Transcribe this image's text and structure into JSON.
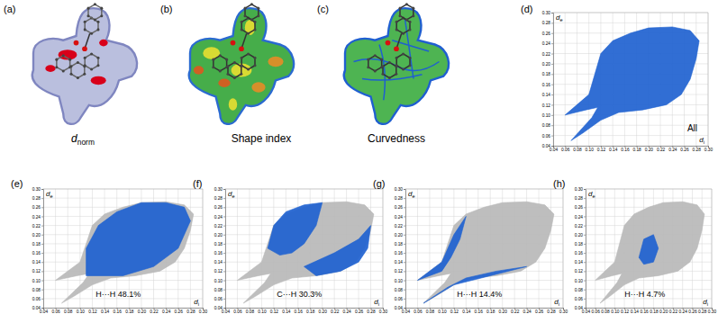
{
  "panels": [
    {
      "label": "(a)",
      "caption": "dnorm"
    },
    {
      "label": "(b)",
      "caption": "Shape index"
    },
    {
      "label": "(c)",
      "caption": "Curvedness"
    }
  ],
  "chart_data": [
    {
      "type": "area",
      "title": "(d)",
      "annotation": "All",
      "xlabel": "di",
      "ylabel": "de",
      "xlim": [
        0.04,
        0.3
      ],
      "ylim": [
        0.04,
        0.3
      ],
      "xticks": [
        0.04,
        0.06,
        0.08,
        {
          "value": 0.1,
          "label": "0.10"
        },
        0.12,
        0.14,
        0.16,
        0.18,
        {
          "value": 0.2,
          "label": "0.20"
        },
        0.22,
        0.24,
        0.26,
        0.28,
        {
          "value": 0.3,
          "label": "0.30"
        }
      ],
      "yticks": [
        0.04,
        0.06,
        0.08,
        {
          "value": 0.1,
          "label": "0.10"
        },
        0.12,
        0.14,
        0.16,
        0.18,
        {
          "value": 0.2,
          "label": "0.20"
        },
        0.22,
        0.24,
        0.26,
        0.28,
        {
          "value": 0.3,
          "label": "0.30"
        }
      ],
      "grid": true,
      "series": [
        {
          "color": "#1f62d0",
          "x": [
            0.06,
            0.1,
            0.11,
            0.12,
            0.14,
            0.17,
            0.2,
            0.24,
            0.27,
            0.285,
            0.28,
            0.27,
            0.255,
            0.23,
            0.19,
            0.15,
            0.12,
            0.09,
            0.07,
            0.105,
            0.115,
            0.095
          ],
          "values": [
            0.1,
            0.14,
            0.18,
            0.22,
            0.245,
            0.26,
            0.27,
            0.272,
            0.265,
            0.245,
            0.21,
            0.17,
            0.14,
            0.12,
            0.11,
            0.105,
            0.09,
            0.065,
            0.05,
            0.095,
            0.115,
            0.11
          ]
        }
      ]
    },
    {
      "type": "area",
      "title": "(e)",
      "annotation": "H···H 48.1%",
      "xlabel": "di",
      "ylabel": "de",
      "xlim": [
        0.04,
        0.3
      ],
      "ylim": [
        0.04,
        0.3
      ],
      "xticks": [
        0.04,
        0.06,
        0.08,
        {
          "value": 0.1,
          "label": "0.10"
        },
        0.12,
        0.14,
        0.16,
        0.18,
        {
          "value": 0.2,
          "label": "0.20"
        },
        0.22,
        0.24,
        0.26,
        0.28,
        {
          "value": 0.3,
          "label": "0.30"
        }
      ],
      "yticks": [
        0.04,
        0.06,
        0.08,
        {
          "value": 0.1,
          "label": "0.10"
        },
        0.12,
        0.14,
        0.16,
        0.18,
        {
          "value": 0.2,
          "label": "0.20"
        },
        0.22,
        0.24,
        0.26,
        0.28,
        {
          "value": 0.3,
          "label": "0.30"
        }
      ],
      "grid": true,
      "series": [
        {
          "color": "#b8b8b8",
          "x": [
            0.06,
            0.1,
            0.11,
            0.12,
            0.14,
            0.17,
            0.2,
            0.24,
            0.27,
            0.285,
            0.28,
            0.27,
            0.255,
            0.23,
            0.19,
            0.15,
            0.12,
            0.09,
            0.07,
            0.105,
            0.115,
            0.095
          ],
          "values": [
            0.1,
            0.14,
            0.18,
            0.22,
            0.245,
            0.26,
            0.27,
            0.272,
            0.265,
            0.245,
            0.21,
            0.17,
            0.14,
            0.12,
            0.11,
            0.105,
            0.09,
            0.065,
            0.05,
            0.095,
            0.115,
            0.11
          ]
        },
        {
          "color": "#1f62d0",
          "x": [
            0.11,
            0.11,
            0.13,
            0.16,
            0.2,
            0.24,
            0.27,
            0.28,
            0.26,
            0.22,
            0.17
          ],
          "values": [
            0.11,
            0.17,
            0.22,
            0.25,
            0.27,
            0.27,
            0.26,
            0.23,
            0.17,
            0.13,
            0.11
          ]
        }
      ]
    },
    {
      "type": "area",
      "title": "(f)",
      "annotation": "C···H 30.3%",
      "xlabel": "di",
      "ylabel": "de",
      "xlim": [
        0.04,
        0.3
      ],
      "ylim": [
        0.04,
        0.3
      ],
      "xticks": [
        0.04,
        0.06,
        0.08,
        {
          "value": 0.1,
          "label": "0.10"
        },
        0.12,
        0.14,
        0.16,
        0.18,
        {
          "value": 0.2,
          "label": "0.20"
        },
        0.22,
        0.24,
        0.26,
        0.28,
        {
          "value": 0.3,
          "label": "0.30"
        }
      ],
      "yticks": [
        0.04,
        0.06,
        0.08,
        {
          "value": 0.1,
          "label": "0.10"
        },
        0.12,
        0.14,
        0.16,
        0.18,
        {
          "value": 0.2,
          "label": "0.20"
        },
        0.22,
        0.24,
        0.26,
        0.28,
        {
          "value": 0.3,
          "label": "0.30"
        }
      ],
      "grid": true,
      "series": [
        {
          "color": "#b8b8b8",
          "x": [
            0.06,
            0.1,
            0.11,
            0.12,
            0.14,
            0.17,
            0.2,
            0.24,
            0.27,
            0.285,
            0.28,
            0.27,
            0.255,
            0.23,
            0.19,
            0.15,
            0.12,
            0.09,
            0.07,
            0.105,
            0.115,
            0.095
          ],
          "values": [
            0.1,
            0.14,
            0.18,
            0.22,
            0.245,
            0.26,
            0.27,
            0.272,
            0.265,
            0.245,
            0.21,
            0.17,
            0.14,
            0.12,
            0.11,
            0.105,
            0.09,
            0.065,
            0.05,
            0.095,
            0.115,
            0.11
          ]
        },
        {
          "color": "#1f62d0",
          "x": [
            0.11,
            0.12,
            0.14,
            0.17,
            0.2,
            0.19,
            0.17,
            0.15,
            0.13,
            null,
            0.17,
            0.22,
            0.26,
            0.28,
            0.275,
            0.26,
            0.23,
            0.19
          ],
          "values": [
            0.17,
            0.22,
            0.25,
            0.265,
            0.27,
            0.22,
            0.18,
            0.16,
            0.155,
            null,
            0.13,
            0.16,
            0.19,
            0.22,
            0.17,
            0.14,
            0.12,
            0.11
          ]
        }
      ]
    },
    {
      "type": "area",
      "title": "(g)",
      "annotation": "H···H 14.4%",
      "xlabel": "di",
      "ylabel": "de",
      "xlim": [
        0.04,
        0.3
      ],
      "ylim": [
        0.04,
        0.3
      ],
      "xticks": [
        0.04,
        0.06,
        0.08,
        {
          "value": 0.1,
          "label": "0.10"
        },
        0.12,
        0.14,
        0.16,
        0.18,
        {
          "value": 0.2,
          "label": "0.20"
        },
        0.22,
        0.24,
        0.26,
        0.28,
        {
          "value": 0.3,
          "label": "0.30"
        }
      ],
      "yticks": [
        0.04,
        0.06,
        0.08,
        {
          "value": 0.1,
          "label": "0.10"
        },
        0.12,
        0.14,
        0.16,
        0.18,
        {
          "value": 0.2,
          "label": "0.20"
        },
        0.22,
        0.24,
        0.26,
        0.28,
        {
          "value": 0.3,
          "label": "0.30"
        }
      ],
      "grid": true,
      "series": [
        {
          "color": "#b8b8b8",
          "x": [
            0.06,
            0.1,
            0.11,
            0.12,
            0.14,
            0.17,
            0.2,
            0.24,
            0.27,
            0.285,
            0.28,
            0.27,
            0.255,
            0.23,
            0.19,
            0.15,
            0.12,
            0.09,
            0.07,
            0.105,
            0.115,
            0.095
          ],
          "values": [
            0.1,
            0.14,
            0.18,
            0.22,
            0.245,
            0.26,
            0.27,
            0.272,
            0.265,
            0.245,
            0.21,
            0.17,
            0.14,
            0.12,
            0.11,
            0.105,
            0.09,
            0.065,
            0.05,
            0.095,
            0.115,
            0.11
          ]
        },
        {
          "color": "#1f62d0",
          "x": [
            0.06,
            0.1,
            0.12,
            0.14,
            0.13,
            0.115,
            0.1,
            null,
            0.07,
            0.12,
            0.18,
            0.24,
            0.19,
            0.14,
            0.11
          ],
          "values": [
            0.1,
            0.14,
            0.2,
            0.24,
            0.19,
            0.15,
            0.12,
            null,
            0.05,
            0.09,
            0.11,
            0.13,
            0.12,
            0.105,
            0.085
          ]
        }
      ]
    },
    {
      "type": "area",
      "title": "(h)",
      "annotation": "H···H 4.7%",
      "xlabel": "di",
      "ylabel": "de",
      "xlim": [
        0.04,
        0.3
      ],
      "ylim": [
        0.04,
        0.3
      ],
      "xticks": [
        0.04,
        0.06,
        0.08,
        {
          "value": 0.1,
          "label": "0.10"
        },
        0.12,
        0.14,
        0.16,
        0.18,
        {
          "value": 0.2,
          "label": "0.20"
        },
        0.22,
        0.24,
        0.26,
        0.28,
        {
          "value": 0.3,
          "label": "0.30"
        }
      ],
      "yticks": [
        0.04,
        0.06,
        0.08,
        {
          "value": 0.1,
          "label": "0.10"
        },
        0.12,
        0.14,
        0.16,
        0.18,
        {
          "value": 0.2,
          "label": "0.20"
        },
        0.22,
        0.24,
        0.26,
        0.28,
        {
          "value": 0.3,
          "label": "0.30"
        }
      ],
      "grid": true,
      "series": [
        {
          "color": "#b8b8b8",
          "x": [
            0.06,
            0.1,
            0.11,
            0.12,
            0.14,
            0.17,
            0.2,
            0.24,
            0.27,
            0.285,
            0.28,
            0.27,
            0.255,
            0.23,
            0.19,
            0.15,
            0.12,
            0.09,
            0.07,
            0.105,
            0.115,
            0.095
          ],
          "values": [
            0.1,
            0.14,
            0.18,
            0.22,
            0.245,
            0.26,
            0.27,
            0.272,
            0.265,
            0.245,
            0.21,
            0.17,
            0.14,
            0.12,
            0.11,
            0.105,
            0.09,
            0.065,
            0.05,
            0.095,
            0.115,
            0.11
          ]
        },
        {
          "color": "#1f62d0",
          "x": [
            0.15,
            0.16,
            0.18,
            0.19,
            0.18,
            0.16
          ],
          "values": [
            0.15,
            0.19,
            0.2,
            0.17,
            0.14,
            0.135
          ]
        }
      ]
    }
  ]
}
